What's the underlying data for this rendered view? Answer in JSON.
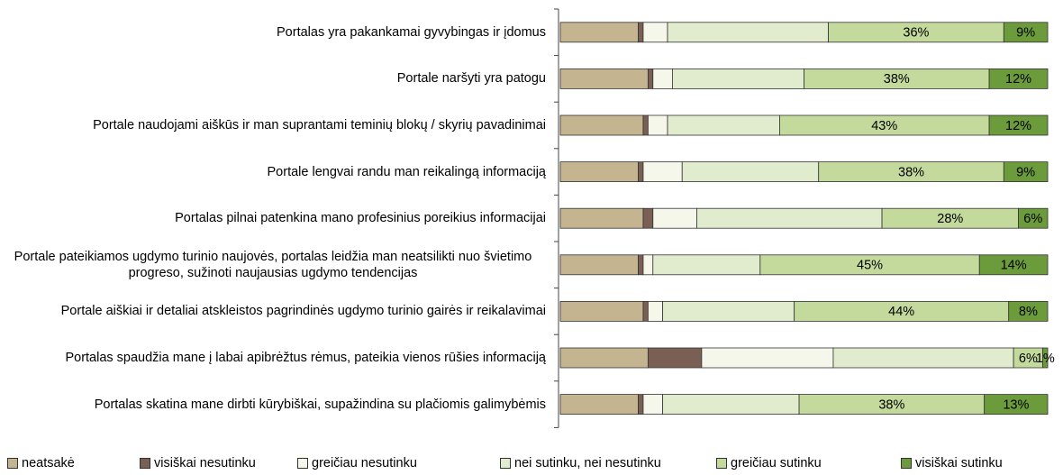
{
  "chart_data": {
    "type": "stacked_bar_horizontal",
    "categories": [
      "Portalas yra pakankamai gyvybingas ir įdomus",
      "Portale naršyti yra patogu",
      "Portale naudojami aiškūs ir man suprantami teminių blokų / skyrių pavadinimai",
      "Portale lengvai randu man reikalingą informaciją",
      "Portalas pilnai patenkina mano profesinius poreikius informacijai",
      "Portale pateikiamos ugdymo turinio naujovės, portalas leidžia man neatsilikti nuo švietimo progreso, sužinoti naujausias ugdymo tendencijas",
      "Portale aiškiai ir detaliai atskleistos pagrindinės ugdymo turinio gairės ir reikalavimai",
      "Portalas spaudžia mane į labai apibrėžtus rėmus, pateikia vienos rūšies informaciją",
      "Portalas skatina mane dirbti kūrybiškai, supažindina su plačiomis galimybėmis"
    ],
    "xlim": [
      0,
      100
    ],
    "series": [
      {
        "name": "neatsakė",
        "color": "#c4b48f",
        "values": [
          16,
          18,
          17,
          16,
          17,
          16,
          17,
          18,
          16
        ]
      },
      {
        "name": "visiškai nesutinku",
        "color": "#7a5f55",
        "values": [
          1,
          1,
          1,
          1,
          2,
          1,
          1,
          11,
          1
        ]
      },
      {
        "name": "greičiau nesutinku",
        "color": "#f5f7ea",
        "values": [
          5,
          4,
          4,
          8,
          9,
          2,
          3,
          27,
          4
        ]
      },
      {
        "name": "nei sutinku, nei nesutinku",
        "color": "#e1ecce",
        "values": [
          33,
          27,
          23,
          28,
          38,
          22,
          27,
          37,
          28
        ]
      },
      {
        "name": "greičiau sutinku",
        "color": "#c3da9c",
        "values": [
          36,
          38,
          43,
          38,
          28,
          45,
          44,
          6,
          38
        ],
        "value_labels": [
          "36%",
          "38%",
          "43%",
          "38%",
          "28%",
          "45%",
          "44%",
          "6%",
          "38%"
        ]
      },
      {
        "name": "visiškai sutinku",
        "color": "#6c9b3b",
        "values": [
          9,
          12,
          12,
          9,
          6,
          14,
          8,
          1,
          13
        ],
        "value_labels": [
          "9%",
          "12%",
          "12%",
          "9%",
          "6%",
          "14%",
          "8%",
          "1%",
          "13%"
        ]
      }
    ]
  }
}
